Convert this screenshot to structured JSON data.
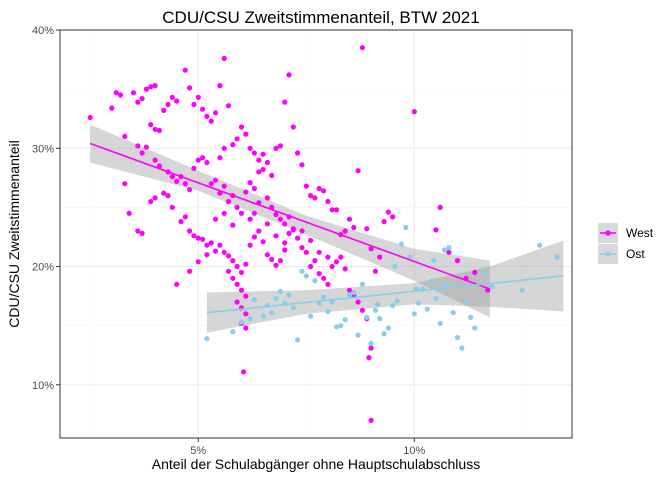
{
  "chart_data": {
    "type": "scatter",
    "title": "CDU/CSU Zweitstimmenanteil, BTW 2021",
    "xlabel": "Anteil der Schulabgänger ohne Hauptschulabschluss",
    "ylabel": "CDU/CSU Zweitstimmenanteil",
    "xlim": [
      0.018,
      0.1365
    ],
    "ylim": [
      0.055,
      0.4
    ],
    "x_ticks": [
      0.05,
      0.1
    ],
    "x_tick_labels": [
      "5%",
      "10%"
    ],
    "y_ticks": [
      0.1,
      0.2,
      0.3,
      0.4
    ],
    "y_tick_labels": [
      "10%",
      "20%",
      "30%",
      "40%"
    ],
    "grid": true,
    "legend_position": "right",
    "series": [
      {
        "name": "West",
        "color": "#FF00FF",
        "fit_line": {
          "x": [
            0.025,
            0.1175
          ],
          "y": [
            0.304,
            0.181
          ]
        },
        "confidence_band": {
          "x": [
            0.025,
            0.05,
            0.075,
            0.1,
            0.1175
          ],
          "lower": [
            0.288,
            0.264,
            0.227,
            0.188,
            0.157
          ],
          "upper": [
            0.32,
            0.281,
            0.243,
            0.215,
            0.205
          ]
        },
        "points": [
          [
            0.025,
            0.326
          ],
          [
            0.03,
            0.334
          ],
          [
            0.031,
            0.347
          ],
          [
            0.032,
            0.345
          ],
          [
            0.033,
            0.31
          ],
          [
            0.033,
            0.27
          ],
          [
            0.035,
            0.347
          ],
          [
            0.036,
            0.339
          ],
          [
            0.037,
            0.342
          ],
          [
            0.038,
            0.35
          ],
          [
            0.039,
            0.352
          ],
          [
            0.04,
            0.353
          ],
          [
            0.039,
            0.32
          ],
          [
            0.04,
            0.316
          ],
          [
            0.041,
            0.315
          ],
          [
            0.042,
            0.332
          ],
          [
            0.043,
            0.337
          ],
          [
            0.044,
            0.343
          ],
          [
            0.045,
            0.34
          ],
          [
            0.047,
            0.366
          ],
          [
            0.048,
            0.351
          ],
          [
            0.049,
            0.337
          ],
          [
            0.05,
            0.343
          ],
          [
            0.051,
            0.333
          ],
          [
            0.052,
            0.327
          ],
          [
            0.053,
            0.323
          ],
          [
            0.054,
            0.33
          ],
          [
            0.055,
            0.353
          ],
          [
            0.056,
            0.376
          ],
          [
            0.057,
            0.336
          ],
          [
            0.036,
            0.302
          ],
          [
            0.037,
            0.296
          ],
          [
            0.038,
            0.301
          ],
          [
            0.04,
            0.29
          ],
          [
            0.041,
            0.285
          ],
          [
            0.043,
            0.28
          ],
          [
            0.044,
            0.276
          ],
          [
            0.045,
            0.272
          ],
          [
            0.046,
            0.276
          ],
          [
            0.047,
            0.27
          ],
          [
            0.048,
            0.265
          ],
          [
            0.049,
            0.283
          ],
          [
            0.05,
            0.29
          ],
          [
            0.051,
            0.292
          ],
          [
            0.052,
            0.288
          ],
          [
            0.053,
            0.27
          ],
          [
            0.054,
            0.273
          ],
          [
            0.055,
            0.262
          ],
          [
            0.056,
            0.268
          ],
          [
            0.057,
            0.255
          ],
          [
            0.058,
            0.26
          ],
          [
            0.059,
            0.25
          ],
          [
            0.06,
            0.245
          ],
          [
            0.061,
            0.263
          ],
          [
            0.062,
            0.271
          ],
          [
            0.063,
            0.266
          ],
          [
            0.064,
            0.28
          ],
          [
            0.065,
            0.282
          ],
          [
            0.066,
            0.288
          ],
          [
            0.067,
            0.277
          ],
          [
            0.068,
            0.3
          ],
          [
            0.069,
            0.302
          ],
          [
            0.07,
            0.339
          ],
          [
            0.071,
            0.362
          ],
          [
            0.072,
            0.318
          ],
          [
            0.073,
            0.296
          ],
          [
            0.074,
            0.286
          ],
          [
            0.075,
            0.268
          ],
          [
            0.076,
            0.26
          ],
          [
            0.077,
            0.258
          ],
          [
            0.078,
            0.266
          ],
          [
            0.079,
            0.264
          ],
          [
            0.08,
            0.255
          ],
          [
            0.081,
            0.248
          ],
          [
            0.082,
            0.248
          ],
          [
            0.083,
            0.227
          ],
          [
            0.084,
            0.23
          ],
          [
            0.085,
            0.24
          ],
          [
            0.086,
            0.233
          ],
          [
            0.087,
            0.281
          ],
          [
            0.088,
            0.385
          ],
          [
            0.089,
            0.232
          ],
          [
            0.09,
            0.215
          ],
          [
            0.091,
            0.196
          ],
          [
            0.092,
            0.208
          ],
          [
            0.093,
            0.238
          ],
          [
            0.094,
            0.246
          ],
          [
            0.095,
            0.242
          ],
          [
            0.034,
            0.245
          ],
          [
            0.036,
            0.23
          ],
          [
            0.037,
            0.228
          ],
          [
            0.039,
            0.255
          ],
          [
            0.04,
            0.258
          ],
          [
            0.042,
            0.262
          ],
          [
            0.043,
            0.26
          ],
          [
            0.044,
            0.25
          ],
          [
            0.046,
            0.238
          ],
          [
            0.047,
            0.242
          ],
          [
            0.048,
            0.23
          ],
          [
            0.049,
            0.226
          ],
          [
            0.05,
            0.224
          ],
          [
            0.051,
            0.223
          ],
          [
            0.052,
            0.218
          ],
          [
            0.053,
            0.22
          ],
          [
            0.054,
            0.213
          ],
          [
            0.055,
            0.218
          ],
          [
            0.056,
            0.212
          ],
          [
            0.057,
            0.209
          ],
          [
            0.058,
            0.205
          ],
          [
            0.059,
            0.2
          ],
          [
            0.06,
            0.195
          ],
          [
            0.061,
            0.202
          ],
          [
            0.062,
            0.218
          ],
          [
            0.063,
            0.225
          ],
          [
            0.064,
            0.23
          ],
          [
            0.065,
            0.221
          ],
          [
            0.066,
            0.21
          ],
          [
            0.067,
            0.206
          ],
          [
            0.068,
            0.201
          ],
          [
            0.069,
            0.205
          ],
          [
            0.07,
            0.214
          ],
          [
            0.071,
            0.228
          ],
          [
            0.072,
            0.231
          ],
          [
            0.073,
            0.224
          ],
          [
            0.074,
            0.216
          ],
          [
            0.075,
            0.212
          ],
          [
            0.076,
            0.2
          ],
          [
            0.077,
            0.205
          ],
          [
            0.078,
            0.194
          ],
          [
            0.079,
            0.19
          ],
          [
            0.08,
            0.185
          ],
          [
            0.081,
            0.2
          ],
          [
            0.082,
            0.204
          ],
          [
            0.083,
            0.208
          ],
          [
            0.084,
            0.198
          ],
          [
            0.085,
            0.18
          ],
          [
            0.086,
            0.176
          ],
          [
            0.087,
            0.17
          ],
          [
            0.088,
            0.163
          ],
          [
            0.089,
            0.156
          ],
          [
            0.09,
            0.131
          ],
          [
            0.0895,
            0.123
          ],
          [
            0.09,
            0.07
          ],
          [
            0.0605,
            0.111
          ],
          [
            0.057,
            0.196
          ],
          [
            0.058,
            0.19
          ],
          [
            0.059,
            0.185
          ],
          [
            0.06,
            0.18
          ],
          [
            0.061,
            0.175
          ],
          [
            0.059,
            0.17
          ],
          [
            0.06,
            0.165
          ],
          [
            0.061,
            0.16
          ],
          [
            0.06,
            0.152
          ],
          [
            0.061,
            0.148
          ],
          [
            0.055,
            0.292
          ],
          [
            0.056,
            0.3
          ],
          [
            0.058,
            0.303
          ],
          [
            0.059,
            0.308
          ],
          [
            0.06,
            0.318
          ],
          [
            0.061,
            0.312
          ],
          [
            0.062,
            0.3
          ],
          [
            0.063,
            0.296
          ],
          [
            0.064,
            0.29
          ],
          [
            0.065,
            0.295
          ],
          [
            0.066,
            0.258
          ],
          [
            0.067,
            0.25
          ],
          [
            0.068,
            0.244
          ],
          [
            0.069,
            0.24
          ],
          [
            0.07,
            0.236
          ],
          [
            0.071,
            0.242
          ],
          [
            0.1,
            0.331
          ],
          [
            0.105,
            0.231
          ],
          [
            0.106,
            0.25
          ],
          [
            0.108,
            0.212
          ],
          [
            0.11,
            0.205
          ],
          [
            0.112,
            0.19
          ],
          [
            0.114,
            0.195
          ],
          [
            0.117,
            0.18
          ],
          [
            0.045,
            0.185
          ],
          [
            0.048,
            0.196
          ],
          [
            0.05,
            0.204
          ],
          [
            0.052,
            0.21
          ],
          [
            0.054,
            0.24
          ],
          [
            0.056,
            0.245
          ],
          [
            0.058,
            0.235
          ],
          [
            0.062,
            0.24
          ],
          [
            0.063,
            0.245
          ],
          [
            0.064,
            0.254
          ],
          [
            0.066,
            0.236
          ],
          [
            0.068,
            0.226
          ],
          [
            0.07,
            0.22
          ],
          [
            0.072,
            0.232
          ],
          [
            0.074,
            0.23
          ],
          [
            0.076,
            0.222
          ],
          [
            0.078,
            0.212
          ],
          [
            0.08,
            0.208
          ]
        ]
      },
      {
        "name": "Ost",
        "color": "#87CEEB",
        "fit_line": {
          "x": [
            0.052,
            0.1345
          ],
          "y": [
            0.161,
            0.192
          ]
        },
        "confidence_band": {
          "x": [
            0.052,
            0.075,
            0.1,
            0.1175,
            0.1345
          ],
          "lower": [
            0.144,
            0.16,
            0.168,
            0.166,
            0.162
          ],
          "upper": [
            0.178,
            0.18,
            0.186,
            0.2,
            0.222
          ]
        },
        "points": [
          [
            0.052,
            0.139
          ],
          [
            0.058,
            0.145
          ],
          [
            0.06,
            0.153
          ],
          [
            0.062,
            0.156
          ],
          [
            0.063,
            0.172
          ],
          [
            0.065,
            0.158
          ],
          [
            0.066,
            0.167
          ],
          [
            0.067,
            0.161
          ],
          [
            0.068,
            0.173
          ],
          [
            0.069,
            0.179
          ],
          [
            0.07,
            0.169
          ],
          [
            0.071,
            0.176
          ],
          [
            0.072,
            0.165
          ],
          [
            0.073,
            0.138
          ],
          [
            0.074,
            0.196
          ],
          [
            0.075,
            0.192
          ],
          [
            0.076,
            0.158
          ],
          [
            0.077,
            0.188
          ],
          [
            0.078,
            0.169
          ],
          [
            0.079,
            0.174
          ],
          [
            0.08,
            0.162
          ],
          [
            0.081,
            0.17
          ],
          [
            0.082,
            0.149
          ],
          [
            0.083,
            0.15
          ],
          [
            0.084,
            0.155
          ],
          [
            0.085,
            0.176
          ],
          [
            0.086,
            0.178
          ],
          [
            0.087,
            0.142
          ],
          [
            0.088,
            0.185
          ],
          [
            0.089,
            0.157
          ],
          [
            0.09,
            0.135
          ],
          [
            0.091,
            0.163
          ],
          [
            0.092,
            0.156
          ],
          [
            0.093,
            0.143
          ],
          [
            0.094,
            0.148
          ],
          [
            0.095,
            0.167
          ],
          [
            0.096,
            0.171
          ],
          [
            0.097,
            0.219
          ],
          [
            0.098,
            0.233
          ],
          [
            0.099,
            0.208
          ],
          [
            0.1,
            0.16
          ],
          [
            0.101,
            0.169
          ],
          [
            0.102,
            0.181
          ],
          [
            0.103,
            0.164
          ],
          [
            0.104,
            0.188
          ],
          [
            0.105,
            0.173
          ],
          [
            0.106,
            0.152
          ],
          [
            0.107,
            0.214
          ],
          [
            0.108,
            0.216
          ],
          [
            0.109,
            0.161
          ],
          [
            0.11,
            0.14
          ],
          [
            0.111,
            0.131
          ],
          [
            0.112,
            0.17
          ],
          [
            0.113,
            0.157
          ],
          [
            0.114,
            0.148
          ],
          [
            0.116,
            0.195
          ],
          [
            0.118,
            0.183
          ],
          [
            0.125,
            0.18
          ],
          [
            0.129,
            0.218
          ],
          [
            0.133,
            0.208
          ],
          [
            0.0915,
            0.168
          ],
          [
            0.0955,
            0.2
          ],
          [
            0.1005,
            0.181
          ],
          [
            0.1045,
            0.205
          ],
          [
            0.107,
            0.185
          ]
        ]
      }
    ]
  }
}
